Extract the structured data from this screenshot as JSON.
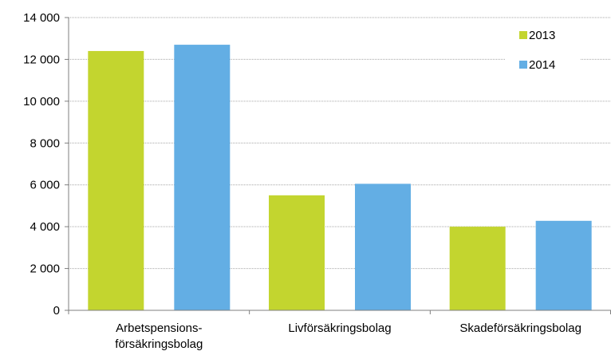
{
  "chart_data": {
    "type": "bar",
    "categories": [
      [
        "Arbetspensions-",
        "försäkringsbolag"
      ],
      [
        "Livförsäkringsbolag"
      ],
      [
        "Skadeförsäkringsbolag"
      ]
    ],
    "series": [
      {
        "name": "2013",
        "color": "#c3d52f",
        "values": [
          12400,
          5500,
          4000
        ]
      },
      {
        "name": "2014",
        "color": "#63aee4",
        "values": [
          12700,
          6050,
          4280
        ]
      }
    ],
    "yticks": [
      {
        "value": 0,
        "label": "0"
      },
      {
        "value": 2000,
        "label": "2 000"
      },
      {
        "value": 4000,
        "label": "4 000"
      },
      {
        "value": 6000,
        "label": "6 000"
      },
      {
        "value": 8000,
        "label": "8 000"
      },
      {
        "value": 10000,
        "label": "10 000"
      },
      {
        "value": 12000,
        "label": "12 000"
      },
      {
        "value": 14000,
        "label": "14 000"
      }
    ],
    "ylim": [
      0,
      14000
    ],
    "grid": true,
    "legend": "top-right",
    "colors": {
      "grid": "#a6a6a6",
      "axis": "#7f7f7f"
    }
  }
}
